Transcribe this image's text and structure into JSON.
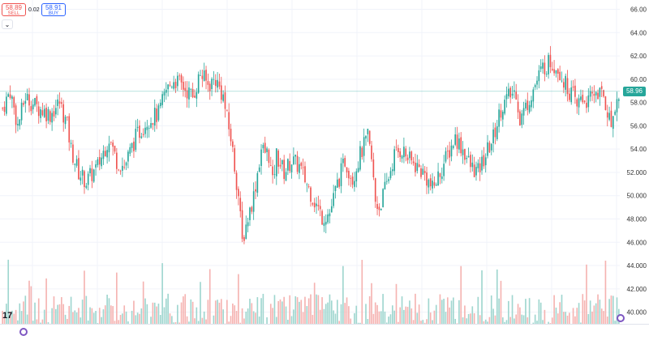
{
  "trade_panel": {
    "sell_price": "58.89",
    "sell_label": "SELL",
    "spread": "0.02",
    "buy_price": "58.91",
    "buy_label": "BUY",
    "collapse_icon": "chevron-down-icon"
  },
  "current_price": "58.96",
  "icons": {
    "logo": "tradingview-logo",
    "settings": "settings-icon",
    "scale": "auto-scale-icon"
  },
  "colors": {
    "up": "#26a69a",
    "down": "#ef5350",
    "up_volume": "#9fd6cf",
    "down_volume": "#f5b3b1",
    "grid": "#f0f3fa"
  },
  "chart_data": {
    "type": "candlestick",
    "y_axis": {
      "position": "right",
      "ylim": [
        39,
        66.8
      ],
      "ticks": [
        "66.00",
        "64.00",
        "62.00",
        "60.00",
        "58.00",
        "56.00",
        "54.00",
        "52.000",
        "50.000",
        "48.000",
        "46.000",
        "44.000",
        "42.000",
        "40.000"
      ]
    },
    "grid": true,
    "volume_overlay": true,
    "close_path": [
      [
        0,
        57.5
      ],
      [
        4,
        59.0
      ],
      [
        8,
        56.0
      ],
      [
        12,
        58.5
      ],
      [
        18,
        57.6
      ],
      [
        25,
        57.0
      ],
      [
        30,
        58.0
      ],
      [
        34,
        56.0
      ],
      [
        36,
        54.0
      ],
      [
        40,
        52.0
      ],
      [
        44,
        51.2
      ],
      [
        50,
        52.5
      ],
      [
        56,
        55.0
      ],
      [
        60,
        53.0
      ],
      [
        64,
        52.5
      ],
      [
        70,
        55.0
      ],
      [
        76,
        56.5
      ],
      [
        82,
        57.0
      ],
      [
        86,
        59.0
      ],
      [
        90,
        60.0
      ],
      [
        94,
        59.5
      ],
      [
        100,
        58.5
      ],
      [
        104,
        60.5
      ],
      [
        108,
        59.5
      ],
      [
        112,
        60.0
      ],
      [
        116,
        58.5
      ],
      [
        118,
        56.5
      ],
      [
        120,
        55.0
      ],
      [
        124,
        50.0
      ],
      [
        126,
        46.0
      ],
      [
        128,
        47.5
      ],
      [
        132,
        50.0
      ],
      [
        136,
        54.0
      ],
      [
        140,
        53.5
      ],
      [
        142,
        51.0
      ],
      [
        144,
        53.5
      ],
      [
        148,
        52.0
      ],
      [
        152,
        53.0
      ],
      [
        156,
        52.5
      ],
      [
        160,
        51.0
      ],
      [
        164,
        49.5
      ],
      [
        168,
        48.2
      ],
      [
        172,
        48.5
      ],
      [
        176,
        51.0
      ],
      [
        180,
        53.0
      ],
      [
        184,
        51.5
      ],
      [
        188,
        53.5
      ],
      [
        192,
        55.0
      ],
      [
        194,
        53.0
      ],
      [
        196,
        49.5
      ],
      [
        198,
        49.0
      ],
      [
        202,
        51.0
      ],
      [
        206,
        53.5
      ],
      [
        210,
        54.0
      ],
      [
        214,
        53.0
      ],
      [
        218,
        52.5
      ],
      [
        222,
        51.8
      ],
      [
        226,
        50.5
      ],
      [
        230,
        52.0
      ],
      [
        234,
        53.5
      ],
      [
        238,
        55.0
      ],
      [
        242,
        54.0
      ],
      [
        246,
        52.5
      ],
      [
        250,
        52.0
      ],
      [
        254,
        53.5
      ],
      [
        258,
        55.0
      ],
      [
        262,
        57.5
      ],
      [
        266,
        58.5
      ],
      [
        270,
        59.0
      ],
      [
        272,
        56.5
      ],
      [
        276,
        58.0
      ],
      [
        280,
        59.5
      ],
      [
        284,
        61.0
      ],
      [
        288,
        61.5
      ],
      [
        292,
        61.0
      ],
      [
        296,
        59.5
      ],
      [
        300,
        58.5
      ],
      [
        302,
        57.5
      ],
      [
        304,
        58.5
      ],
      [
        308,
        58.0
      ],
      [
        312,
        59.0
      ],
      [
        316,
        58.5
      ],
      [
        320,
        56.0
      ],
      [
        322,
        58.0
      ],
      [
        324,
        58.2
      ]
    ],
    "volume_ylim": [
      0,
      100
    ],
    "volume_baseline_price": 39
  }
}
